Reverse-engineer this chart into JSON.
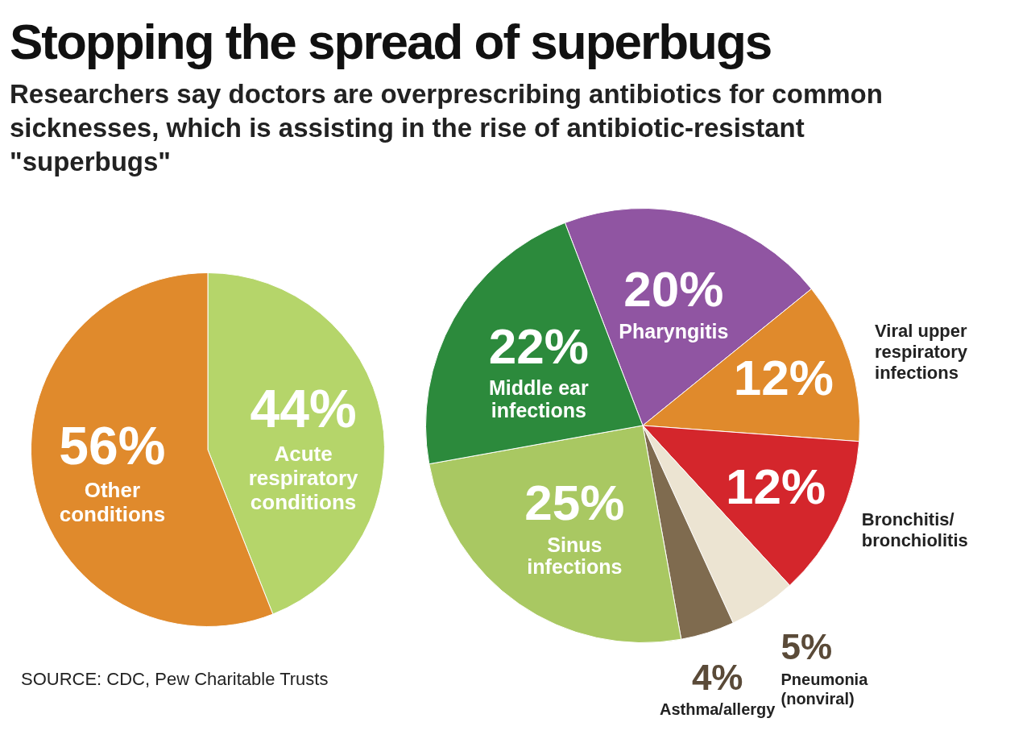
{
  "chart_data": [
    {
      "type": "pie",
      "title": "Stopping the spread of superbugs",
      "subtitle": "Researchers say doctors are overprescribing antibiotics for common sicknesses, which is assisting in the rise of antibiotic-resistant \"superbugs\"",
      "categories": [
        "Acute respiratory conditions",
        "Other conditions"
      ],
      "values": [
        44,
        56
      ],
      "value_labels": [
        "44%",
        "56%"
      ],
      "colors": [
        "#b5d56a",
        "#e08a2c"
      ],
      "annotations": [
        "SOURCE: CDC, Pew Charitable Trusts"
      ]
    },
    {
      "type": "pie",
      "categories": [
        "Pharyngitis",
        "Viral upper respiratory infections",
        "Bronchitis/ bronchiolitis",
        "Pneumonia (nonviral)",
        "Asthma/allergy",
        "Sinus infections",
        "Middle ear infections"
      ],
      "values": [
        20,
        12,
        12,
        5,
        4,
        25,
        22
      ],
      "value_labels": [
        "20%",
        "12%",
        "12%",
        "5%",
        "4%",
        "25%",
        "22%"
      ],
      "colors": [
        "#9055a2",
        "#e08a2c",
        "#d4262c",
        "#ece4d2",
        "#7f6b4f",
        "#a9c862",
        "#2c8a3c"
      ]
    }
  ]
}
